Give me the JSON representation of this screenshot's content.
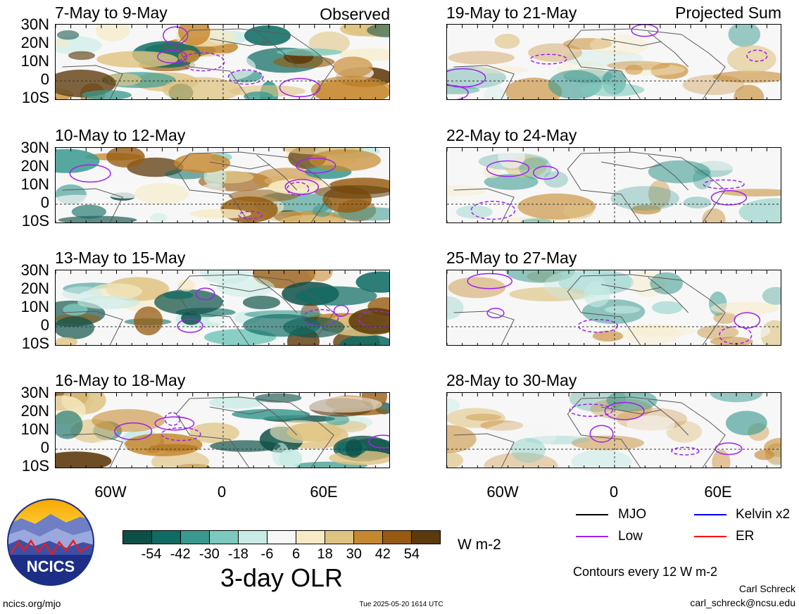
{
  "panels": {
    "left": [
      {
        "period": "7-May to 9-May",
        "corner": "Observed"
      },
      {
        "period": "10-May to 12-May",
        "corner": ""
      },
      {
        "period": "13-May to 15-May",
        "corner": ""
      },
      {
        "period": "16-May to 18-May",
        "corner": ""
      }
    ],
    "right": [
      {
        "period": "19-May to 21-May",
        "corner": "Projected Sum"
      },
      {
        "period": "22-May to 24-May",
        "corner": ""
      },
      {
        "period": "25-May to 27-May",
        "corner": ""
      },
      {
        "period": "28-May to 30-May",
        "corner": ""
      }
    ]
  },
  "latitude_labels": [
    "30N",
    "20N",
    "10N",
    "0",
    "10S"
  ],
  "longitude_labels": [
    "60W",
    "0",
    "60E"
  ],
  "colorbar": {
    "colors": [
      "#0b4f46",
      "#0f6c63",
      "#3a9a8f",
      "#7ccabf",
      "#c8ebe5",
      "#f7f7f7",
      "#f7ebc5",
      "#dfc381",
      "#c6882e",
      "#965b10",
      "#5d3a0b"
    ],
    "ticks": [
      "-54",
      "-42",
      "-30",
      "-18",
      "-6",
      "6",
      "18",
      "30",
      "42",
      "54"
    ],
    "units": "W m-2",
    "title": "3-day OLR"
  },
  "legend": {
    "items": [
      {
        "label": "MJO",
        "color": "#000000"
      },
      {
        "label": "Kelvin x2",
        "color": "#0000ff"
      },
      {
        "label": "Low",
        "color": "#a020f0"
      },
      {
        "label": "ER",
        "color": "#ff0000"
      }
    ],
    "contour_note": "Contours every 12 W m-2"
  },
  "logo": {
    "text": "NCICS"
  },
  "footer": {
    "url": "ncics.org/mjo",
    "timestamp": "Tue 2025-05-20 1614 UTC",
    "author": "Carl Schreck",
    "email": "carl_schreck@ncsu.edu"
  }
}
